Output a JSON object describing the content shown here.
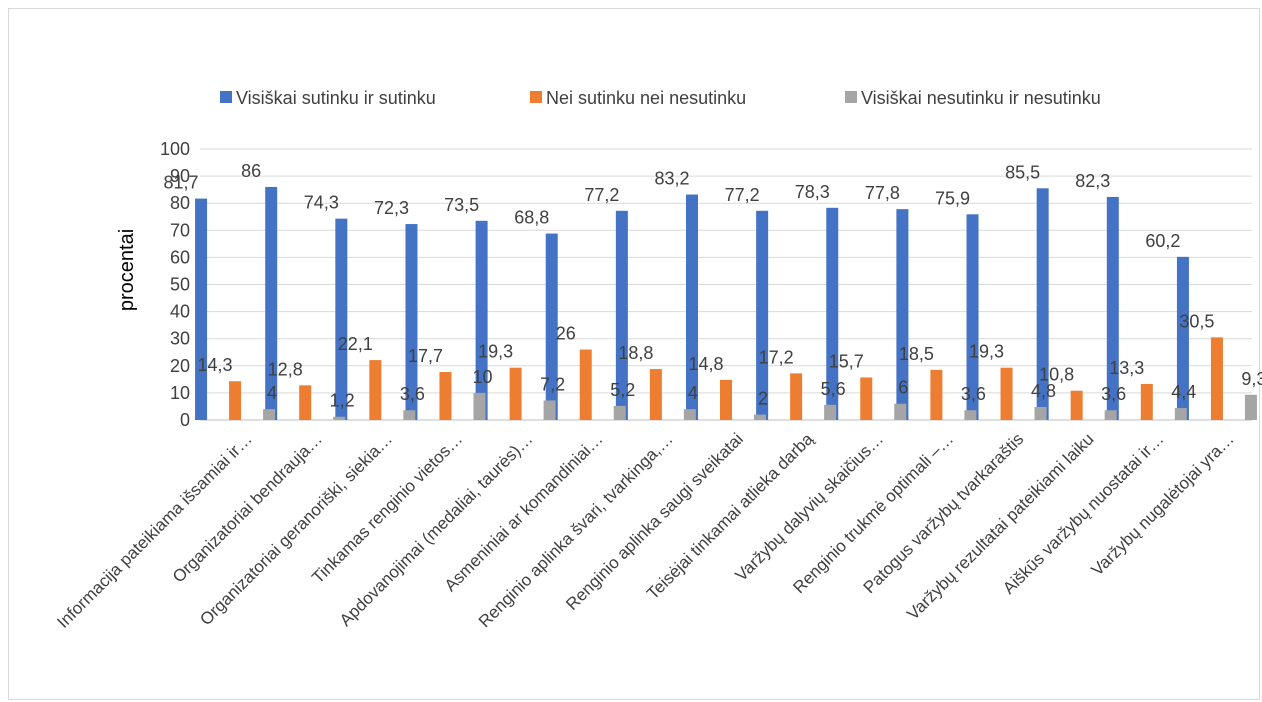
{
  "chart_data": {
    "type": "bar",
    "ylabel": "procentai",
    "ylim": [
      0,
      100
    ],
    "yticks": [
      0,
      10,
      20,
      30,
      40,
      50,
      60,
      70,
      80,
      90,
      100
    ],
    "grid": true,
    "legend_position": "top",
    "categories": [
      "Informacija pateikiama išsamiai ir…",
      "Organizatoriai bendrauja…",
      "Organizatoriai geranoriški, siekia…",
      "Tinkamas renginio vietos…",
      "Apdovanojimai (medaliai, taurės)…",
      "Asmeniniai ar komandiniai…",
      "Renginio aplinka švari, tvarkinga,…",
      "Renginio aplinka saugi sveikatai",
      "Teisėjai tinkamai atlieka darbą",
      "Varžybų dalyvių skaičius…",
      "Renginio trukmė optimali –…",
      "Patogus varžybų tvarkaraštis",
      "Varžybų rezultatai pateikiami laiku",
      "Aiškūs varžybų nuostatai ir…",
      "Varžybų nugalėtojai yra…"
    ],
    "series": [
      {
        "name": "Visiškai sutinku ir sutinku",
        "color": "#4472C4",
        "values": [
          81.7,
          86,
          74.3,
          72.3,
          73.5,
          68.8,
          77.2,
          83.2,
          77.2,
          78.3,
          77.8,
          75.9,
          85.5,
          82.3,
          60.2
        ],
        "labels": [
          "81,7",
          "86",
          "74,3",
          "72,3",
          "73,5",
          "68,8",
          "77,2",
          "83,2",
          "77,2",
          "78,3",
          "77,8",
          "75,9",
          "85,5",
          "82,3",
          "60,2"
        ]
      },
      {
        "name": "Nei sutinku nei nesutinku",
        "color": "#ED7D31",
        "values": [
          14.3,
          12.8,
          22.1,
          17.7,
          19.3,
          26,
          18.8,
          14.8,
          17.2,
          15.7,
          18.5,
          19.3,
          10.8,
          13.3,
          30.5
        ],
        "labels": [
          "14,3",
          "12,8",
          "22,1",
          "17,7",
          "19,3",
          "26",
          "18,8",
          "14,8",
          "17,2",
          "15,7",
          "18,5",
          "19,3",
          "10,8",
          "13,3",
          "30,5"
        ]
      },
      {
        "name": "Visiškai nesutinku ir nesutinku",
        "color": "#A5A5A5",
        "values": [
          4,
          1.2,
          3.6,
          10,
          7.2,
          5.2,
          4,
          2,
          5.6,
          6,
          3.6,
          4.8,
          3.6,
          4.4,
          9.3
        ],
        "labels": [
          "4",
          "1,2",
          "3,6",
          "10",
          "7,2",
          "5,2",
          "4",
          "2",
          "5,6",
          "6",
          "3,6",
          "4,8",
          "3,6",
          "4,4",
          "9,3"
        ]
      }
    ]
  }
}
